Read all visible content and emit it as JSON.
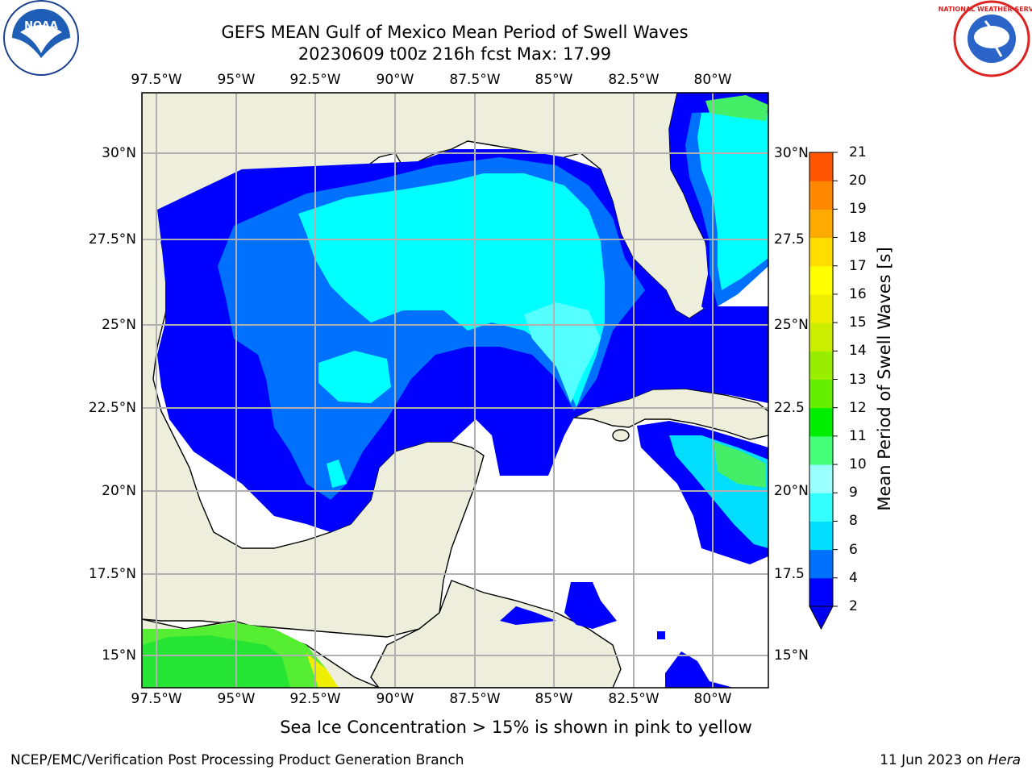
{
  "header": {
    "title": "GEFS MEAN Gulf of Mexico Mean Period of Swell Waves",
    "subtitle": "20230609 t00z 216h fcst   Max: 17.99"
  },
  "logos": {
    "left_text": "NOAA",
    "right_text": "NATIONAL WEATHER SERVICE"
  },
  "map": {
    "lon_labels": [
      "97.5°W",
      "95°W",
      "92.5°W",
      "90°W",
      "87.5°W",
      "85°W",
      "82.5°W",
      "80°W"
    ],
    "lat_labels_left": [
      "30°N",
      "27.5°N",
      "25°N",
      "22.5°N",
      "20°N",
      "17.5°N",
      "15°N"
    ],
    "lat_labels_right": [
      "30°N",
      "27.5",
      "25°N",
      "22.5",
      "20°N",
      "17.5",
      "15°N"
    ],
    "lon_range": [
      -98,
      -78
    ],
    "lat_range": [
      14,
      32
    ],
    "land_color": "#eeeedc",
    "no_data_color": "#ffffff"
  },
  "colorbar": {
    "title": "Mean Period of Swell Waves [s]",
    "ticks": [
      "2",
      "4",
      "6",
      "8",
      "9",
      "10",
      "11",
      "12",
      "13",
      "14",
      "15",
      "16",
      "17",
      "18",
      "19",
      "20",
      "21"
    ],
    "colors": [
      "#0000ff",
      "#0070ff",
      "#00ddff",
      "#33ffff",
      "#99ffff",
      "#44ff77",
      "#00ee00",
      "#66ee00",
      "#99ee00",
      "#ccee00",
      "#eeee00",
      "#ffff00",
      "#ffdd00",
      "#ffaa00",
      "#ff8800",
      "#ff5500",
      "#ff2200"
    ],
    "extend_min_color": "#0000ee"
  },
  "note": "Sea Ice Concentration > 15% is shown in pink to yellow",
  "footer": {
    "left": "NCEP/EMC/Verification Post Processing Product Generation Branch",
    "date": "11 Jun 2023 on ",
    "machine": "Hera"
  }
}
